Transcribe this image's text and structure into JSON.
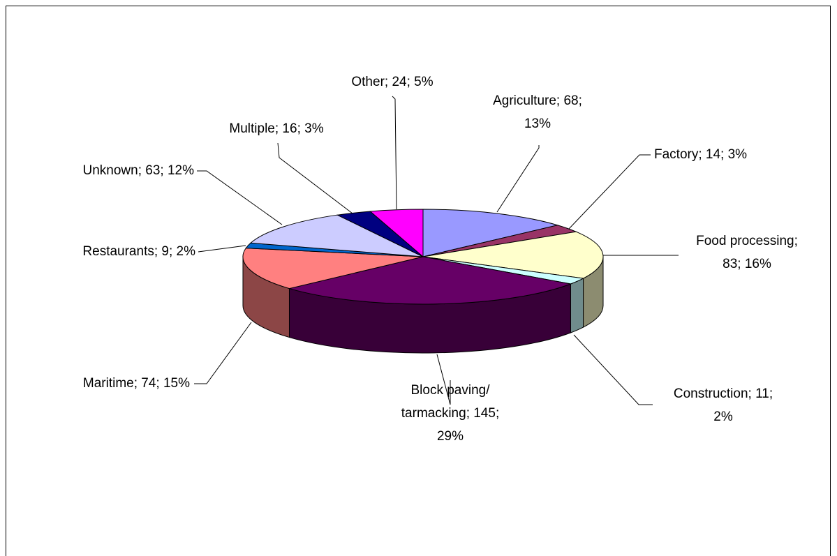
{
  "chart_data": {
    "type": "pie3d",
    "values": [
      68,
      14,
      83,
      11,
      145,
      74,
      9,
      63,
      16,
      24
    ],
    "value_labels": [
      [
        "Agriculture; 68;",
        "13%"
      ],
      [
        "Factory; 14; 3%"
      ],
      [
        "Food processing;",
        "83; 16%"
      ],
      [
        "Construction; 11;",
        "2%"
      ],
      [
        "Block paving/",
        "tarmacking; 145;",
        "29%"
      ],
      [
        "Maritime; 74; 15%"
      ],
      [
        "Restaurants; 9; 2%"
      ],
      [
        "Unknown; 63; 12%"
      ],
      [
        "Multiple; 16; 3%"
      ],
      [
        "Other; 24; 5%"
      ]
    ],
    "colors": [
      "#9999ff",
      "#993366",
      "#ffffcc",
      "#ccffff",
      "#660066",
      "#ff8080",
      "#0066cc",
      "#ccccff",
      "#000080",
      "#ff00ff"
    ],
    "start_angle": 0,
    "direction": "clockwise"
  }
}
